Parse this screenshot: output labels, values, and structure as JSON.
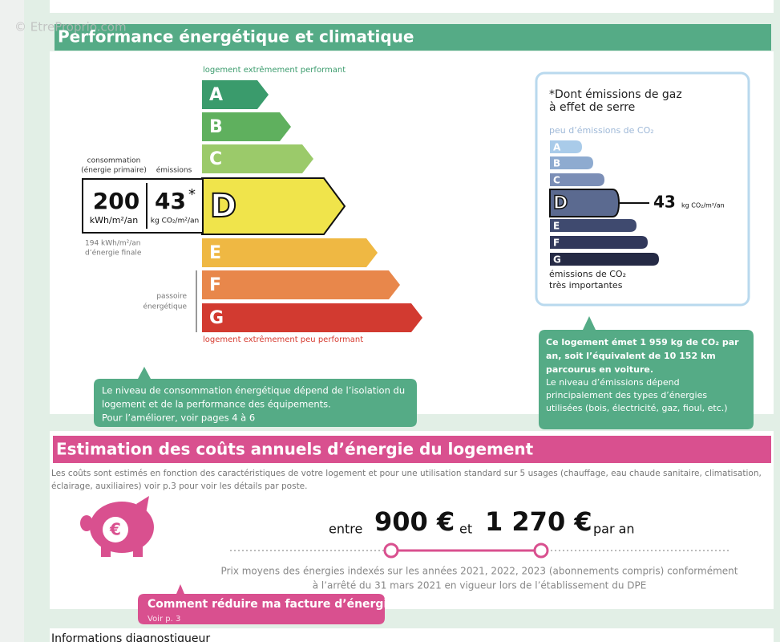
{
  "watermark": "© EtreProprio.com",
  "energy": {
    "title": "Performance énergétique et climatique",
    "top_label": "logement extrêmement performant",
    "bottom_label": "logement extrêmement peu performant",
    "classes": [
      "A",
      "B",
      "C",
      "D",
      "E",
      "F",
      "G"
    ],
    "consumption_label": [
      "consommation",
      "(énergie primaire)"
    ],
    "emissions_label": "émissions",
    "consumption": "200",
    "consumption_unit": "kWh/m²/an",
    "emissions": "43",
    "emissions_mark": "*",
    "emissions_unit": "kg CO₂/m²/an",
    "final_energy": [
      "194 kWh/m²/an",
      "d’énergie finale"
    ],
    "passoire": [
      "passoire",
      "énergétique"
    ],
    "note": [
      "Le niveau de consommation énergétique dépend de l’isolation du",
      "logement et de la performance des équipements.",
      "Pour l’améliorer, voir pages 4 à 6"
    ]
  },
  "ghg": {
    "heading": [
      "*Dont émissions de gaz",
      "à effet de serre"
    ],
    "top_label": "peu d’émissions de CO₂",
    "classes": [
      "A",
      "B",
      "C",
      "D",
      "E",
      "F",
      "G"
    ],
    "value": "43",
    "unit": "kg CO₂/m²/an",
    "bottom_label": [
      "émissions de CO₂",
      "très importantes"
    ],
    "note_bold": [
      "Ce logement émet 1 959 kg de CO₂ par",
      "an, soit l’équivalent de 10 152 km",
      "parcourus en voiture."
    ],
    "note": [
      "Le niveau d’émissions dépend",
      "principalement des types d’énergies",
      "utilisées (bois, électricité, gaz, fioul, etc.)"
    ]
  },
  "costs": {
    "title": "Estimation des coûts annuels d’énergie du logement",
    "intro": [
      "Les coûts sont estimés en fonction des caractéristiques de votre logement et pour une utilisation standard sur 5 usages (chauffage, eau chaude sanitaire, climatisation,",
      "éclairage, auxiliaires) voir p.3 pour voir les détails par poste."
    ],
    "between": "entre",
    "low": "900 €",
    "and": "et",
    "high": "1 270 €",
    "per": "par an",
    "piggy": "€",
    "reference": [
      "Prix moyens des énergies indexés sur les années 2021, 2022, 2023 (abonnements compris) conformément",
      "à l’arrêté du 31 mars 2021 en vigueur lors de l’établissement du DPE"
    ],
    "cta": "Comment réduire ma facture d’énergie ?",
    "cta_sub": "Voir p. 3"
  },
  "footer": "Informations diagnostiqueur"
}
